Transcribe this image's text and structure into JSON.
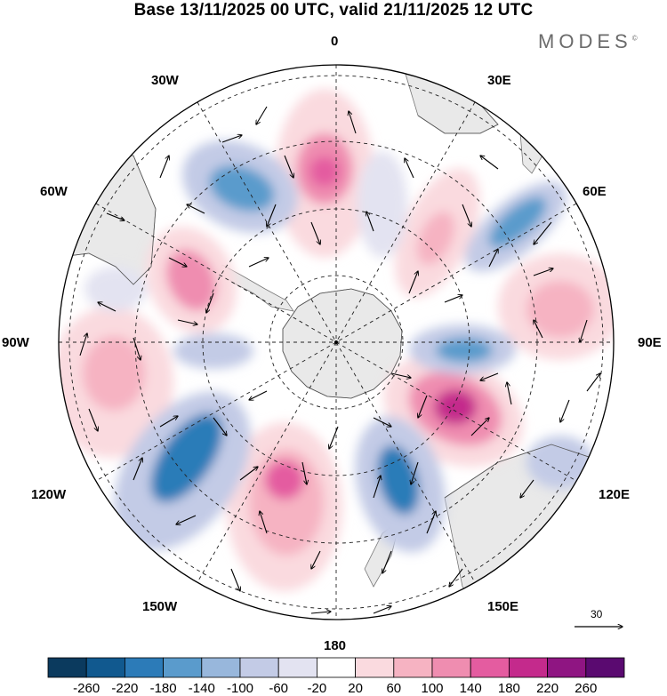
{
  "title": "Base 13/11/2025 00 UTC, valid 21/11/2025 12 UTC",
  "brand": "MODES",
  "brand_mark": "©",
  "labels": {
    "lon_0": "0",
    "lon_30e": "30E",
    "lon_60e": "60E",
    "lon_90e": "90E",
    "lon_120e": "120E",
    "lon_150e": "150E",
    "lon_180": "180",
    "lon_150w": "150W",
    "lon_120w": "120W",
    "lon_90w": "90W",
    "lon_60w": "60W",
    "lon_30w": "30W"
  },
  "reference_vector": "30",
  "colorbar": {
    "ticks": [
      "-260",
      "-220",
      "-180",
      "-140",
      "-100",
      "-60",
      "-20",
      "20",
      "60",
      "100",
      "140",
      "180",
      "220",
      "260"
    ],
    "colors": [
      "#0b3a5e",
      "#11598f",
      "#2c7bb8",
      "#5a9bcc",
      "#98b7dc",
      "#c3cbe6",
      "#e3e3f1",
      "#ffffff",
      "#fadadf",
      "#f6b3c2",
      "#ef8db0",
      "#e45ca0",
      "#c42a8c",
      "#8f1582",
      "#5a0a70"
    ]
  }
}
